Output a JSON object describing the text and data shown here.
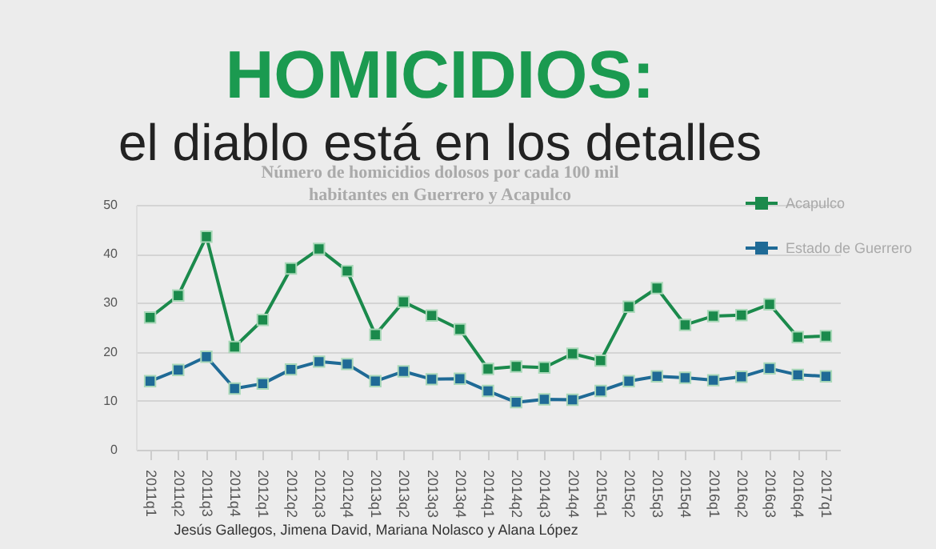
{
  "chart_data": {
    "type": "line",
    "title": "HOMICIDIOS:",
    "subtitle": "el diablo está en los detalles",
    "annotations": [
      "Número de homicidios dolosos por cada 100 mil habitantes en Guerrero y Acapulco",
      "Jesús Gallegos, Jimena David, Mariana Nolasco y Alana López"
    ],
    "categories": [
      "2011q1",
      "2011q2",
      "2011q3",
      "2011q4",
      "2012q1",
      "2012q2",
      "2012q3",
      "2012q4",
      "2013q1",
      "2013q2",
      "2013q3",
      "2013q4",
      "2014q1",
      "2014q2",
      "2014q3",
      "2014q4",
      "2015q1",
      "2015q2",
      "2015q3",
      "2015q4",
      "2016q1",
      "2016q2",
      "2016q3",
      "2016q4",
      "2017q1"
    ],
    "series": [
      {
        "name": "Acapulco",
        "color": "#1b8a4c",
        "values": [
          27,
          31.5,
          43.5,
          21,
          26.5,
          37,
          41,
          36.5,
          23.5,
          30.2,
          27.4,
          24.6,
          16.5,
          17,
          16.8,
          19.6,
          18.2,
          29.2,
          33,
          25.5,
          27.3,
          27.5,
          29.7,
          23,
          23.2
        ]
      },
      {
        "name": "Estado de Guerrero",
        "color": "#1f6a96",
        "values": [
          14,
          16.3,
          19,
          12.5,
          13.5,
          16.4,
          18,
          17.5,
          14,
          16,
          14.4,
          14.5,
          12,
          9.7,
          10.3,
          10.2,
          12,
          14,
          15,
          14.7,
          14.2,
          14.9,
          16.6,
          15.3,
          15
        ]
      }
    ],
    "ylim": [
      0,
      50
    ],
    "yticks": [
      0,
      10,
      20,
      30,
      40,
      50
    ],
    "grid": "y",
    "legend": "top right",
    "marker": "square",
    "line_style": "solid"
  }
}
